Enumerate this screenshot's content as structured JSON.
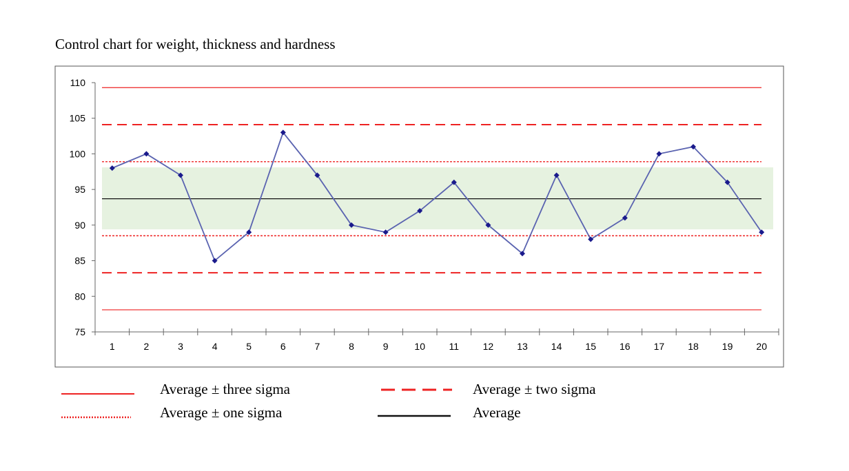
{
  "chart_data": {
    "type": "line",
    "title": "Control chart for weight, thickness and hardness",
    "xlabel": "",
    "ylabel": "",
    "categories": [
      "1",
      "2",
      "3",
      "4",
      "5",
      "6",
      "7",
      "8",
      "9",
      "10",
      "11",
      "12",
      "13",
      "14",
      "15",
      "16",
      "17",
      "18",
      "19",
      "20"
    ],
    "series": [
      {
        "values": [
          98,
          100,
          97,
          85,
          89,
          103,
          97,
          90,
          89,
          92,
          96,
          90,
          86,
          97,
          88,
          91,
          100,
          101,
          96,
          89
        ],
        "color": "#1a1a8c"
      }
    ],
    "ylim": [
      75,
      110
    ],
    "yticks": [
      75,
      80,
      85,
      90,
      95,
      100,
      105,
      110
    ],
    "control_limits": {
      "average": 93.7,
      "one_sigma": [
        88.5,
        98.9
      ],
      "two_sigma": [
        83.3,
        104.1
      ],
      "three_sigma": [
        78.1,
        109.3
      ]
    },
    "shaded_band": [
      89.4,
      98.1
    ],
    "grid": false,
    "colors": {
      "limit": "#ee2222",
      "average": "#111111",
      "band": "#e6f2e0",
      "series": "#1a1a8c"
    },
    "legend": {
      "placement": "bottom",
      "entries": [
        {
          "label": "Average ± three sigma",
          "style": "solid-red"
        },
        {
          "label": "Average ± two sigma",
          "style": "dashed-red"
        },
        {
          "label": "Average ± one sigma",
          "style": "dotted-red"
        },
        {
          "label": "Average",
          "style": "solid-black"
        }
      ]
    }
  }
}
